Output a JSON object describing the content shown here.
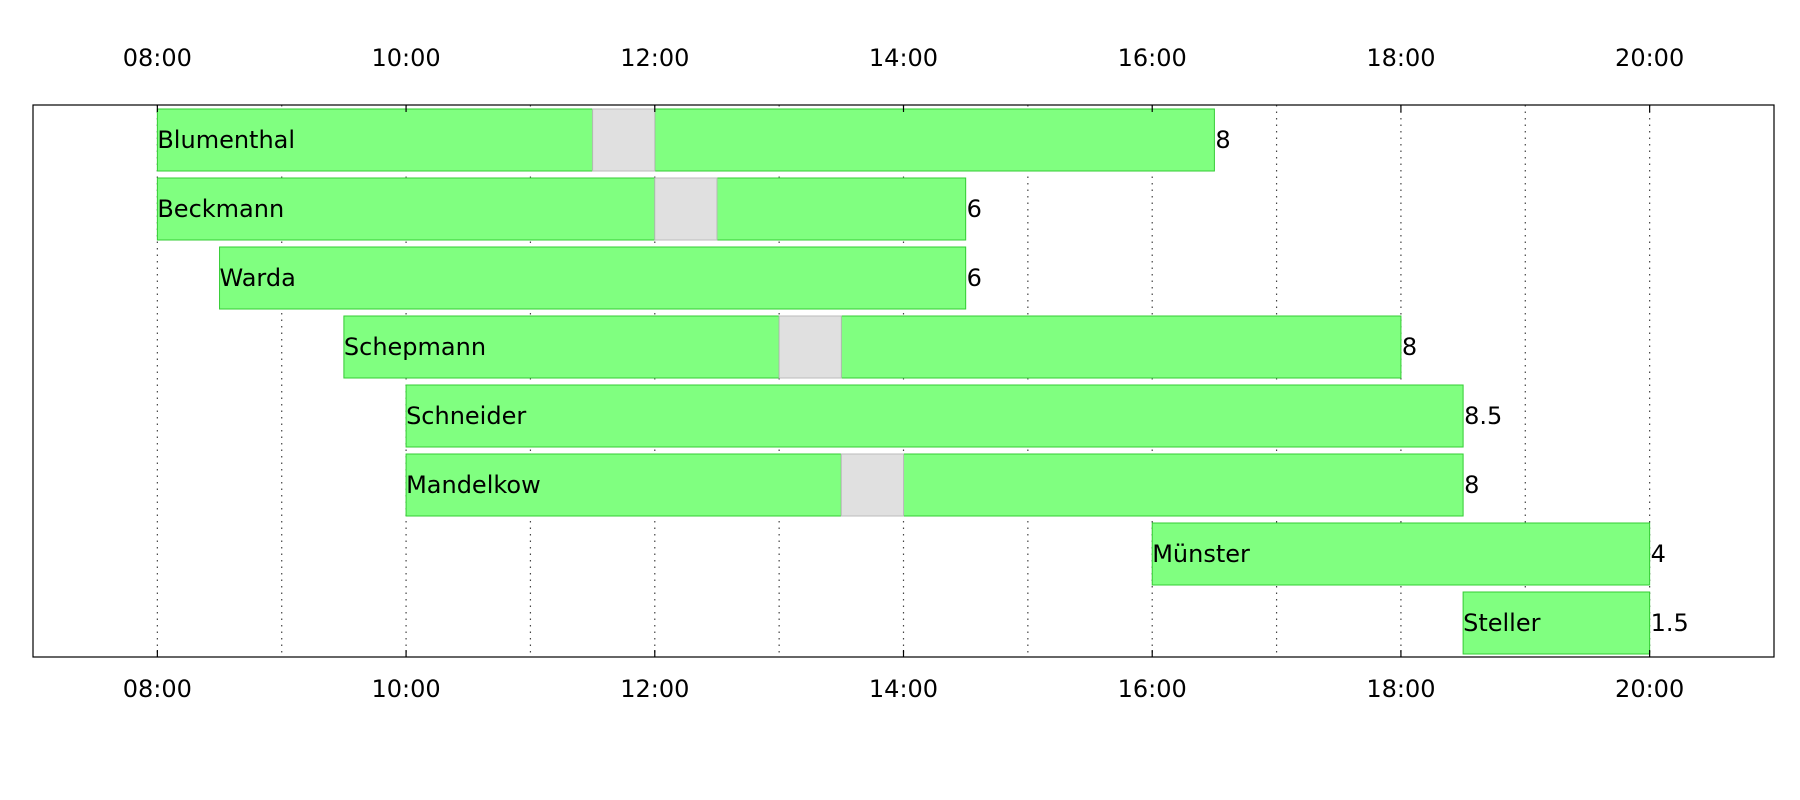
{
  "chart_data": {
    "type": "bar",
    "subtype": "gantt",
    "title": "",
    "xlabel": "",
    "ylabel": "",
    "x_unit": "hour of day",
    "xlim": [
      7,
      21
    ],
    "x_tick_values": [
      8,
      10,
      12,
      14,
      16,
      18,
      20
    ],
    "x_tick_labels": [
      "08:00",
      "10:00",
      "12:00",
      "14:00",
      "16:00",
      "18:00",
      "20:00"
    ],
    "x_axis_labels_top_and_bottom": true,
    "grid": {
      "vertical": true,
      "style": "dotted",
      "every_hours": 1
    },
    "legend": "none",
    "colors": {
      "work": "#80ff80",
      "work_edge": "#33cc33",
      "break": "#e0e0e0",
      "break_edge": "#bbbbbb",
      "grid": "#444444",
      "frame": "#000000"
    },
    "rows": [
      {
        "name": "Blumenthal",
        "total": "8",
        "work": [
          [
            8,
            11.5
          ],
          [
            12,
            16.5
          ]
        ],
        "breaks": [
          [
            11.5,
            12
          ]
        ]
      },
      {
        "name": "Beckmann",
        "total": "6",
        "work": [
          [
            8,
            12
          ],
          [
            12.5,
            14.5
          ]
        ],
        "breaks": [
          [
            12,
            12.5
          ]
        ]
      },
      {
        "name": "Warda",
        "total": "6",
        "work": [
          [
            8.5,
            14.5
          ]
        ],
        "breaks": []
      },
      {
        "name": "Schepmann",
        "total": "8",
        "work": [
          [
            9.5,
            13
          ],
          [
            13.5,
            18
          ]
        ],
        "breaks": [
          [
            13,
            13.5
          ]
        ]
      },
      {
        "name": "Schneider",
        "total": "8.5",
        "work": [
          [
            10,
            18.5
          ]
        ],
        "breaks": []
      },
      {
        "name": "Mandelkow",
        "total": "8",
        "work": [
          [
            10,
            13.5
          ],
          [
            14,
            18.5
          ]
        ],
        "breaks": [
          [
            13.5,
            14
          ]
        ]
      },
      {
        "name": "Münster",
        "total": "4",
        "work": [
          [
            16,
            20
          ]
        ],
        "breaks": []
      },
      {
        "name": "Steller",
        "total": "1.5",
        "work": [
          [
            18.5,
            20
          ]
        ],
        "breaks": []
      }
    ]
  }
}
